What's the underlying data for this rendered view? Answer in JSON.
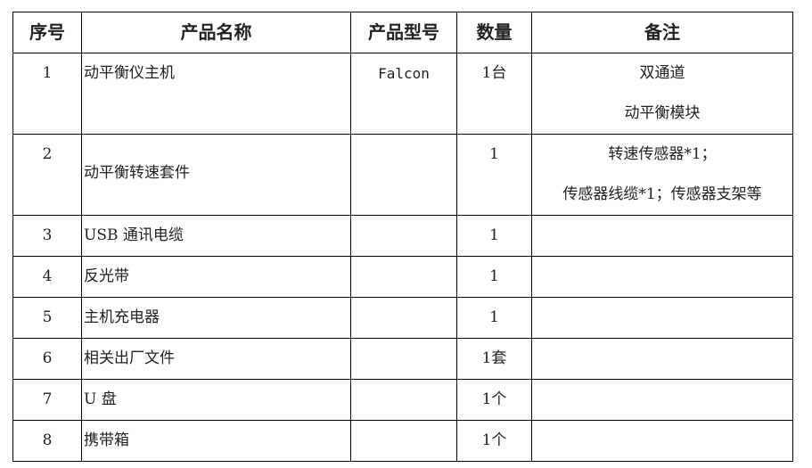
{
  "headers": [
    "序号",
    "产品名称",
    "产品型号",
    "数量",
    "备注"
  ],
  "rows": [
    {
      "no": "1",
      "name": "动平衡仪主机",
      "model": "Falcon",
      "qty": "1台",
      "remarks": [
        "双通道",
        "动平衡模块"
      ]
    },
    {
      "no": "2",
      "name": "动平衡转速套件",
      "model": "",
      "qty": "1",
      "remarks": [
        "转速传感器*1；",
        "传感器线缆*1；传感器支架等"
      ]
    },
    {
      "no": "3",
      "name": "USB 通讯电缆",
      "model": "",
      "qty": "1",
      "remarks": []
    },
    {
      "no": "4",
      "name": "反光带",
      "model": "",
      "qty": "1",
      "remarks": []
    },
    {
      "no": "5",
      "name": "主机充电器",
      "model": "",
      "qty": "1",
      "remarks": []
    },
    {
      "no": "6",
      "name": "相关出厂文件",
      "model": "",
      "qty": "1套",
      "remarks": []
    },
    {
      "no": "7",
      "name": "U 盘",
      "model": "",
      "qty": "1个",
      "remarks": []
    },
    {
      "no": "8",
      "name": "携带箱",
      "model": "",
      "qty": "1个",
      "remarks": []
    }
  ]
}
